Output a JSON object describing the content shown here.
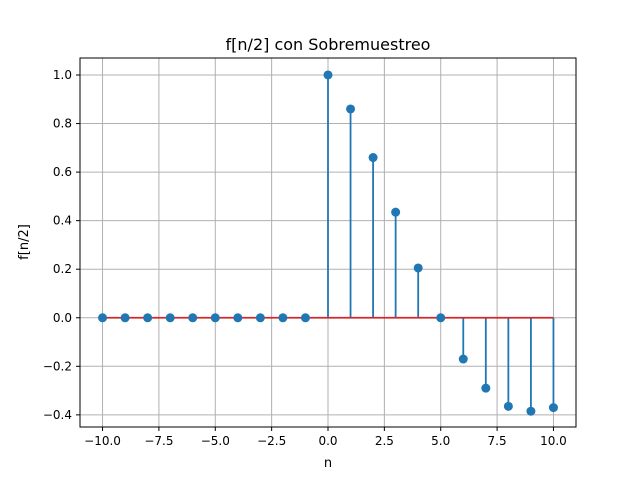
{
  "chart_data": {
    "type": "stem",
    "title": "f[n/2] con Sobremuestreo",
    "xlabel": "n",
    "ylabel": "f[n/2]",
    "xlim": [
      -11,
      11
    ],
    "ylim": [
      -0.45,
      1.07
    ],
    "grid": true,
    "xticks": [
      -10,
      -7.5,
      -5,
      -2.5,
      0,
      2.5,
      5,
      7.5,
      10
    ],
    "xtick_labels": [
      "−10.0",
      "−7.5",
      "−5.0",
      "−2.5",
      "0.0",
      "2.5",
      "5.0",
      "7.5",
      "10.0"
    ],
    "yticks": [
      -0.4,
      -0.2,
      0.0,
      0.2,
      0.4,
      0.6,
      0.8,
      1.0
    ],
    "ytick_labels": [
      "−0.4",
      "−0.2",
      "0.0",
      "0.2",
      "0.4",
      "0.6",
      "0.8",
      "1.0"
    ],
    "x": [
      -10,
      -9,
      -8,
      -7,
      -6,
      -5,
      -4,
      -3,
      -2,
      -1,
      0,
      1,
      2,
      3,
      4,
      5,
      6,
      7,
      8,
      9,
      10
    ],
    "y": [
      0,
      0,
      0,
      0,
      0,
      0,
      0,
      0,
      0,
      0,
      1.0,
      0.86,
      0.66,
      0.435,
      0.205,
      0.0,
      -0.17,
      -0.29,
      -0.365,
      -0.385,
      -0.37
    ],
    "colors": {
      "stem": "#1f77b4",
      "baseline": "#d62728",
      "grid": "#b0b0b0"
    }
  }
}
